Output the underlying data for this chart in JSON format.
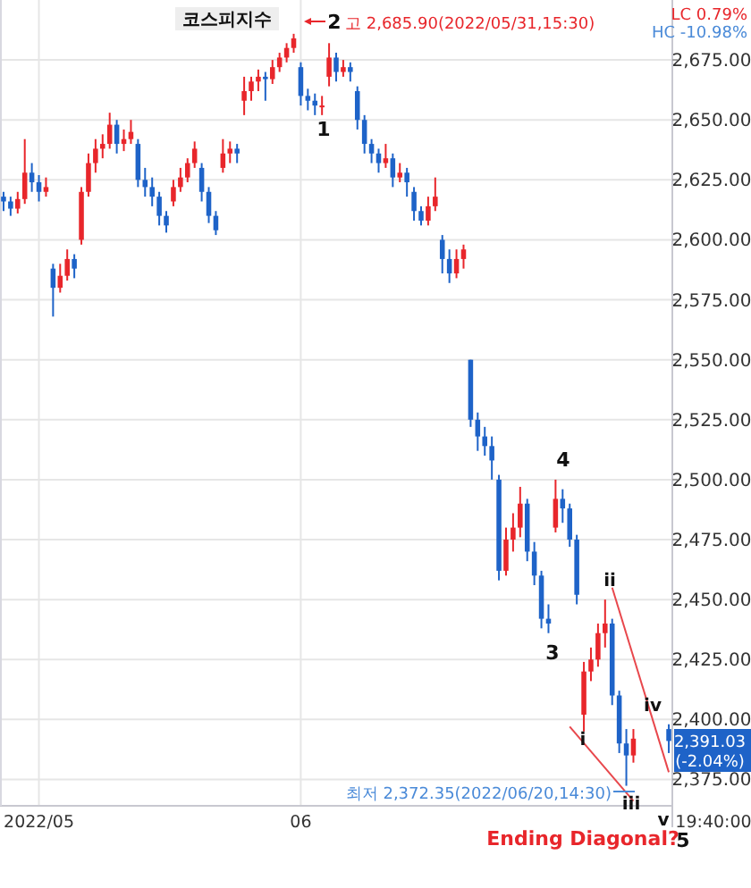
{
  "chart_data": {
    "type": "candlestick",
    "title": "코스피지수",
    "categories": [
      null,
      null,
      null,
      null,
      null,
      "2022/05",
      null,
      null,
      null,
      null,
      null,
      null,
      null,
      null,
      null,
      null,
      null,
      null,
      null,
      null,
      null,
      null,
      null,
      null,
      null,
      null,
      null,
      null,
      null,
      null,
      null,
      null,
      null,
      null,
      null,
      null,
      null,
      null,
      null,
      null,
      null,
      null,
      "06",
      null,
      null,
      null,
      null,
      null,
      null,
      null,
      null,
      null,
      null,
      null,
      null,
      null,
      null,
      null,
      null,
      null,
      null,
      null,
      null,
      null,
      null,
      null,
      null,
      null,
      null,
      null,
      null,
      null,
      null,
      null,
      null,
      null,
      null,
      null,
      null,
      null,
      null,
      null,
      null,
      null,
      null,
      null,
      null,
      null,
      null,
      null,
      null,
      null,
      null,
      null,
      null
    ],
    "ohlc": [
      [
        2618,
        2620,
        2612,
        2616
      ],
      [
        2616,
        2618,
        2610,
        2613
      ],
      [
        2613,
        2620,
        2611,
        2617
      ],
      [
        2617,
        2642,
        2615,
        2628
      ],
      [
        2628,
        2632,
        2620,
        2624
      ],
      [
        2624,
        2627,
        2616,
        2620
      ],
      [
        2620,
        2626,
        2618,
        2622
      ],
      [
        2588,
        2590,
        2568,
        2580
      ],
      [
        2580,
        2590,
        2578,
        2585
      ],
      [
        2585,
        2596,
        2583,
        2592
      ],
      [
        2592,
        2594,
        2584,
        2588
      ],
      [
        2600,
        2622,
        2598,
        2620
      ],
      [
        2620,
        2636,
        2618,
        2632
      ],
      [
        2632,
        2642,
        2628,
        2638
      ],
      [
        2638,
        2644,
        2634,
        2640
      ],
      [
        2640,
        2653,
        2638,
        2648
      ],
      [
        2648,
        2650,
        2636,
        2640
      ],
      [
        2640,
        2646,
        2637,
        2642
      ],
      [
        2642,
        2650,
        2640,
        2645
      ],
      [
        2640,
        2642,
        2622,
        2625
      ],
      [
        2625,
        2630,
        2618,
        2622
      ],
      [
        2622,
        2626,
        2614,
        2618
      ],
      [
        2618,
        2620,
        2606,
        2610
      ],
      [
        2610,
        2612,
        2603,
        2606
      ],
      [
        2616,
        2625,
        2614,
        2622
      ],
      [
        2622,
        2630,
        2620,
        2626
      ],
      [
        2626,
        2634,
        2624,
        2632
      ],
      [
        2632,
        2641,
        2630,
        2638
      ],
      [
        2630,
        2632,
        2616,
        2620
      ],
      [
        2620,
        2622,
        2607,
        2610
      ],
      [
        2610,
        2612,
        2602,
        2604
      ],
      [
        2630,
        2642,
        2628,
        2636
      ],
      [
        2636,
        2641,
        2632,
        2638
      ],
      [
        2638,
        2640,
        2632,
        2636
      ],
      [
        2658,
        2668,
        2652,
        2662
      ],
      [
        2662,
        2668,
        2658,
        2666
      ],
      [
        2666,
        2671,
        2662,
        2668
      ],
      [
        2668,
        2670,
        2658,
        2667
      ],
      [
        2667,
        2675,
        2665,
        2672
      ],
      [
        2672,
        2678,
        2670,
        2676
      ],
      [
        2676,
        2682,
        2674,
        2680
      ],
      [
        2680,
        2685.9,
        2678,
        2684
      ],
      [
        2672,
        2674,
        2656,
        2660
      ],
      [
        2660,
        2663,
        2654,
        2658
      ],
      [
        2658,
        2661,
        2652,
        2656
      ],
      [
        2656,
        2660,
        2652,
        2656
      ],
      [
        2668,
        2682,
        2664,
        2676
      ],
      [
        2676,
        2678,
        2666,
        2670
      ],
      [
        2670,
        2675,
        2668,
        2672
      ],
      [
        2672,
        2674,
        2666,
        2670
      ],
      [
        2662,
        2664,
        2646,
        2650
      ],
      [
        2650,
        2652,
        2636,
        2640
      ],
      [
        2640,
        2642,
        2632,
        2636
      ],
      [
        2636,
        2638,
        2628,
        2632
      ],
      [
        2632,
        2640,
        2630,
        2634
      ],
      [
        2634,
        2636,
        2622,
        2626
      ],
      [
        2626,
        2632,
        2624,
        2628
      ],
      [
        2628,
        2630,
        2618,
        2624
      ],
      [
        2620,
        2622,
        2608,
        2612
      ],
      [
        2612,
        2614,
        2606,
        2608
      ],
      [
        2608,
        2618,
        2606,
        2614
      ],
      [
        2614,
        2626,
        2612,
        2618
      ],
      [
        2600,
        2602,
        2586,
        2592
      ],
      [
        2592,
        2596,
        2582,
        2586
      ],
      [
        2586,
        2596,
        2584,
        2592
      ],
      [
        2592,
        2598,
        2588,
        2596
      ],
      [
        2550,
        2550,
        2522,
        2525
      ],
      [
        2525,
        2528,
        2512,
        2518
      ],
      [
        2518,
        2522,
        2510,
        2514
      ],
      [
        2514,
        2518,
        2500,
        2508
      ],
      [
        2500,
        2502,
        2458,
        2462
      ],
      [
        2462,
        2480,
        2460,
        2475
      ],
      [
        2475,
        2486,
        2470,
        2480
      ],
      [
        2480,
        2497,
        2476,
        2490
      ],
      [
        2490,
        2492,
        2466,
        2470
      ],
      [
        2470,
        2474,
        2456,
        2460
      ],
      [
        2460,
        2462,
        2438,
        2442
      ],
      [
        2442,
        2448,
        2436,
        2440
      ],
      [
        2480,
        2500,
        2478,
        2492
      ],
      [
        2492,
        2496,
        2482,
        2488
      ],
      [
        2488,
        2490,
        2472,
        2475
      ],
      [
        2475,
        2477,
        2448,
        2452
      ],
      [
        2402,
        2424,
        2395,
        2420
      ],
      [
        2420,
        2430,
        2416,
        2425
      ],
      [
        2425,
        2440,
        2422,
        2436
      ],
      [
        2436,
        2450,
        2430,
        2440
      ],
      [
        2440,
        2442,
        2406,
        2410
      ],
      [
        2410,
        2412,
        2386,
        2390
      ],
      [
        2390,
        2396,
        2372.35,
        2385
      ],
      [
        2385,
        2396,
        2382,
        2392
      ],
      null,
      null,
      null,
      null,
      [
        2396,
        2398,
        2386,
        2391.03
      ]
    ],
    "series": [
      {
        "type": "line",
        "color": "#e8474c",
        "values": [
          null,
          null,
          null,
          null,
          null,
          null,
          null,
          null,
          null,
          null,
          null,
          null,
          null,
          null,
          null,
          null,
          null,
          null,
          null,
          null,
          null,
          null,
          null,
          null,
          null,
          null,
          null,
          null,
          null,
          null,
          null,
          null,
          null,
          null,
          null,
          null,
          null,
          null,
          null,
          null,
          null,
          null,
          null,
          null,
          null,
          null,
          null,
          null,
          null,
          null,
          null,
          null,
          null,
          null,
          null,
          null,
          null,
          null,
          null,
          null,
          null,
          null,
          null,
          null,
          null,
          null,
          null,
          null,
          null,
          null,
          null,
          null,
          null,
          null,
          null,
          null,
          null,
          null,
          null,
          null,
          2397,
          null,
          null,
          null,
          null,
          null,
          null,
          null,
          null,
          2366,
          null,
          null,
          null,
          null,
          null
        ]
      },
      {
        "type": "line",
        "color": "#e8474c",
        "values": [
          null,
          null,
          null,
          null,
          null,
          null,
          null,
          null,
          null,
          null,
          null,
          null,
          null,
          null,
          null,
          null,
          null,
          null,
          null,
          null,
          null,
          null,
          null,
          null,
          null,
          null,
          null,
          null,
          null,
          null,
          null,
          null,
          null,
          null,
          null,
          null,
          null,
          null,
          null,
          null,
          null,
          null,
          null,
          null,
          null,
          null,
          null,
          null,
          null,
          null,
          null,
          null,
          null,
          null,
          null,
          null,
          null,
          null,
          null,
          null,
          null,
          null,
          null,
          null,
          null,
          null,
          null,
          null,
          null,
          null,
          null,
          null,
          null,
          null,
          null,
          null,
          null,
          null,
          null,
          null,
          null,
          null,
          null,
          null,
          null,
          null,
          2455,
          null,
          null,
          null,
          null,
          null,
          null,
          null,
          2378
        ]
      }
    ],
    "ylim": [
      2364,
      2700
    ],
    "yticks": [
      {
        "value": 2375,
        "label": "2,375.00"
      },
      {
        "value": 2400,
        "label": "2,400.00"
      },
      {
        "value": 2425,
        "label": "2,425.00"
      },
      {
        "value": 2450,
        "label": "2,450.00"
      },
      {
        "value": 2475,
        "label": "2,475.00"
      },
      {
        "value": 2500,
        "label": "2,500.00"
      },
      {
        "value": 2525,
        "label": "2,525.00"
      },
      {
        "value": 2550,
        "label": "2,550.00"
      },
      {
        "value": 2575,
        "label": "2,575.00"
      },
      {
        "value": 2600,
        "label": "2,600.00"
      },
      {
        "value": 2625,
        "label": "2,625.00"
      },
      {
        "value": 2650,
        "label": "2,650.00"
      },
      {
        "value": 2675,
        "label": "2,675.00"
      }
    ],
    "grid": true,
    "annotations": [
      "2",
      "고 2,685.90(2022/05/31,15:30)",
      "1",
      "3",
      "4",
      "5",
      "i",
      "ii",
      "iii",
      "iv",
      "v",
      "최저 2,372.35(2022/06/20,14:30)",
      "Ending Diagonal?",
      "LC  0.79%",
      "HC -10.98%",
      "2,391.03",
      "(-2.04%)",
      "19:40:00"
    ]
  }
}
